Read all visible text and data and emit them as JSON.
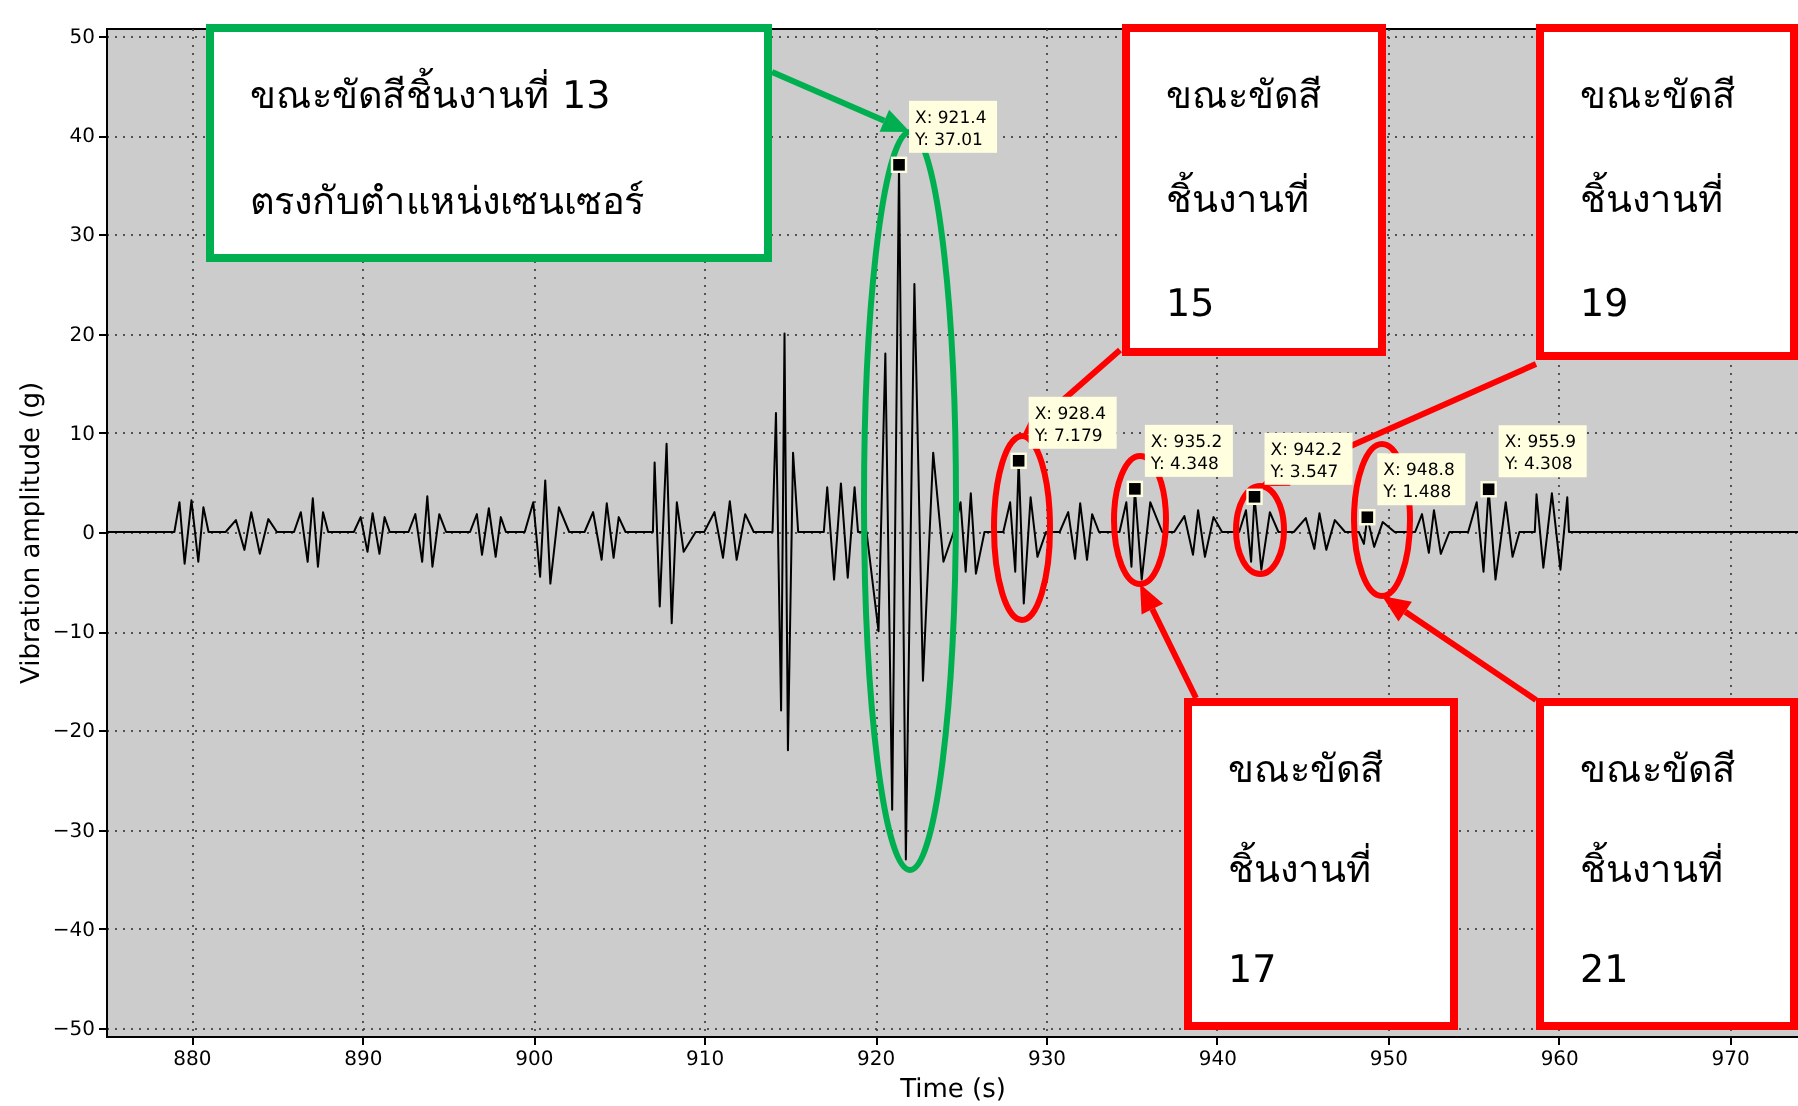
{
  "chart_data": {
    "type": "line",
    "xlabel": "Time (s)",
    "ylabel": "Vibration amplitude (g)",
    "xlim": [
      875,
      974
    ],
    "ylim": [
      -50.8,
      50.8
    ],
    "xticks": [
      880,
      890,
      900,
      910,
      920,
      930,
      940,
      950,
      960,
      970
    ],
    "yticks": [
      -50,
      -40,
      -30,
      -20,
      -10,
      0,
      10,
      20,
      30,
      40,
      50
    ],
    "grid": true,
    "line_style": "solid",
    "series": [
      {
        "color": "#000000",
        "x": [
          875,
          879,
          879.3,
          879.6,
          880,
          880.4,
          880.7,
          881,
          882,
          882.6,
          883.1,
          883.5,
          884,
          884.5,
          885,
          886,
          886.4,
          886.8,
          887.1,
          887.4,
          887.7,
          888,
          889.5,
          889.9,
          890.3,
          890.6,
          891,
          891.3,
          891.6,
          892.7,
          893.1,
          893.5,
          893.8,
          894.1,
          894.5,
          894.9,
          896.3,
          896.7,
          897,
          897.4,
          897.8,
          898.1,
          898.4,
          899.5,
          900,
          900.4,
          900.7,
          901,
          901.5,
          902.1,
          903,
          903.5,
          904,
          904.3,
          904.7,
          905,
          905.4,
          907,
          907.1,
          907.4,
          907.8,
          908.1,
          908.4,
          908.8,
          909.5,
          910,
          910.6,
          911.1,
          911.5,
          911.9,
          912.4,
          912.9,
          914,
          914.2,
          914.5,
          914.7,
          914.9,
          915.2,
          915.5,
          917,
          917.2,
          917.6,
          918,
          918.4,
          918.8,
          919,
          919.5,
          920.2,
          920.6,
          921,
          921.4,
          921.8,
          922.3,
          922.8,
          923.4,
          924,
          924.6,
          925,
          925.3,
          925.6,
          925.9,
          926.4,
          927.5,
          927.9,
          928.2,
          928.4,
          928.7,
          929.1,
          929.5,
          930,
          930.8,
          931.3,
          931.7,
          932,
          932.4,
          932.7,
          933.1,
          934.3,
          934.7,
          935,
          935.2,
          935.6,
          936.1,
          936.8,
          937.5,
          938.1,
          938.6,
          938.9,
          939.3,
          939.8,
          940.3,
          941.3,
          941.7,
          942,
          942.2,
          942.6,
          943.1,
          943.6,
          944.5,
          945.2,
          945.7,
          946,
          946.4,
          946.9,
          947.5,
          948.3,
          948.6,
          948.8,
          949.2,
          949.7,
          950.4,
          951.6,
          952,
          952.4,
          952.7,
          953.1,
          953.6,
          954.7,
          955.2,
          955.6,
          955.9,
          956.3,
          956.9,
          957.3,
          957.7,
          958.6,
          958.7,
          959.1,
          959.6,
          960.1,
          960.5,
          960.6,
          974
        ],
        "values": [
          0,
          0,
          3.0,
          -3.2,
          3.2,
          -3.0,
          2.5,
          0,
          0,
          1.2,
          -1.8,
          2.0,
          -2.2,
          1.3,
          0,
          0,
          2.0,
          -3.0,
          3.4,
          -3.5,
          2.0,
          0,
          0,
          1.5,
          -2.0,
          1.9,
          -2.2,
          1.5,
          0,
          0,
          1.8,
          -3.0,
          3.6,
          -3.5,
          1.8,
          0,
          0,
          1.8,
          -2.3,
          2.4,
          -2.5,
          1.5,
          0,
          0,
          3.0,
          -4.5,
          5.2,
          -5.2,
          2.5,
          0,
          0,
          2.0,
          -2.8,
          2.9,
          -2.6,
          1.5,
          0,
          0,
          7.0,
          -7.5,
          8.9,
          -9.2,
          3.0,
          -2.0,
          0,
          0,
          2.0,
          -2.6,
          3.1,
          -2.8,
          1.8,
          0,
          0,
          12,
          -18,
          20,
          -22,
          8,
          0,
          0,
          4.5,
          -4.8,
          4.9,
          -4.6,
          4.5,
          0,
          0,
          -10,
          18,
          -28,
          37.01,
          -33,
          25,
          -15,
          8,
          -3,
          0,
          3.0,
          -4.0,
          3.9,
          -4.2,
          0,
          0,
          3.0,
          -4.0,
          7.179,
          -7.2,
          3.5,
          -2.5,
          0,
          0,
          2.0,
          -2.7,
          2.9,
          -2.8,
          1.8,
          0,
          0,
          3.0,
          -3.5,
          4.348,
          -4.8,
          3.0,
          0,
          0,
          1.6,
          -2.3,
          2.2,
          -2.5,
          1.5,
          0,
          0,
          2.2,
          -3.0,
          3.547,
          -3.8,
          2.0,
          0,
          0,
          1.4,
          -1.7,
          1.9,
          -1.8,
          1.2,
          0,
          0,
          -1.2,
          1.488,
          -1.5,
          1.0,
          0,
          0,
          1.8,
          -2.1,
          2.2,
          -2.2,
          0,
          0,
          3.0,
          -4.0,
          4.308,
          -4.8,
          3.0,
          -2.5,
          0,
          0,
          3.8,
          -3.6,
          3.9,
          -3.8,
          3.5,
          0,
          0
        ]
      }
    ],
    "annotations": [
      "ขณะขัดสีชิ้นงานที่ 13 ตรงกับตำแหน่งเซนเซอร์",
      "ขณะขัดสี ชิ้นงานที่ 15",
      "ขณะขัดสี ชิ้นงานที่ 17",
      "ขณะขัดสี ชิ้นงานที่ 19",
      "ขณะขัดสี ชิ้นงานที่ 21",
      {
        "text": "X: 921.4 Y: 37.01",
        "x": 921.4,
        "y": 37.01
      },
      {
        "text": "X: 928.4 Y: 7.179",
        "x": 928.4,
        "y": 7.179
      },
      {
        "text": "X: 935.2 Y: 4.348",
        "x": 935.2,
        "y": 4.348
      },
      {
        "text": "X: 942.2 Y: 3.547",
        "x": 942.2,
        "y": 3.547
      },
      {
        "text": "X: 948.8 Y: 1.488",
        "x": 948.8,
        "y": 1.488
      },
      {
        "text": "X: 955.9 Y: 4.308",
        "x": 955.9,
        "y": 4.308
      }
    ]
  }
}
